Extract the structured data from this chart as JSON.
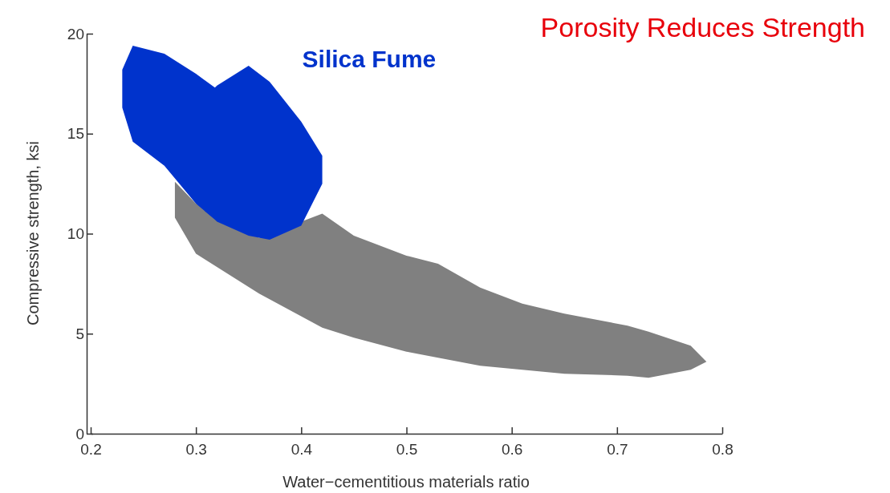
{
  "chart_data": {
    "type": "line",
    "title": "Porosity Reduces Strength",
    "xlabel": "Water−cementitious materials ratio",
    "ylabel": "Compressive strength, ksi",
    "xlim": [
      0.2,
      0.8
    ],
    "xticks": [
      0.2,
      0.3,
      0.4,
      0.5,
      0.6,
      0.7,
      0.8
    ],
    "ylim": [
      0,
      20
    ],
    "yticks": [
      0,
      5,
      10,
      15,
      20
    ],
    "series": [
      {
        "color": "#808080",
        "x": [
          0.28,
          0.3,
          0.36,
          0.42,
          0.45,
          0.5,
          0.53,
          0.57,
          0.61,
          0.65,
          0.71,
          0.73,
          0.77,
          0.785
        ],
        "values": [
          null,
          null,
          null,
          null,
          null,
          null,
          null,
          null,
          null,
          null,
          null,
          null,
          null,
          null
        ],
        "upper": [
          12.6,
          11.5,
          9.8,
          11.0,
          9.9,
          8.9,
          8.5,
          7.3,
          6.5,
          6.0,
          5.4,
          5.1,
          4.4,
          3.6
        ],
        "lower": [
          10.8,
          9.0,
          7.0,
          5.3,
          4.8,
          4.1,
          3.8,
          3.4,
          3.2,
          3.0,
          2.9,
          2.8,
          3.2,
          3.6
        ]
      },
      {
        "name": "Silica Fume",
        "color": "#0033cc",
        "x": [
          0.23,
          0.24,
          0.27,
          0.3,
          0.318,
          0.32,
          0.35,
          0.37,
          0.4,
          0.42
        ],
        "values": [
          null,
          null,
          null,
          null,
          null,
          null,
          null,
          null,
          null,
          null
        ],
        "upper": [
          18.2,
          19.4,
          19.0,
          18.0,
          17.3,
          17.4,
          18.4,
          17.6,
          15.6,
          13.9
        ],
        "lower": [
          16.3,
          14.6,
          13.4,
          11.5,
          10.7,
          10.6,
          9.9,
          9.7,
          10.4,
          12.5
        ]
      }
    ]
  }
}
